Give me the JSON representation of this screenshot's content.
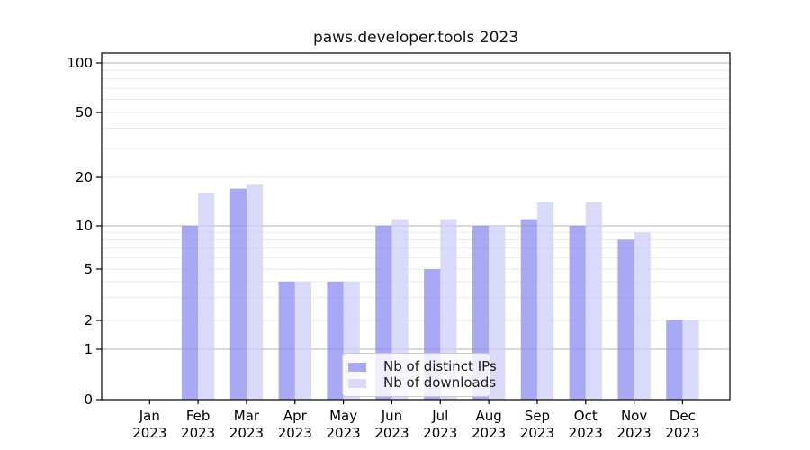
{
  "chart_data": {
    "type": "bar",
    "title": "paws.developer.tools 2023",
    "yscale": "log-like",
    "ylim": [
      0,
      115
    ],
    "grid": true,
    "legend_position": "bottom-center",
    "yticks": [
      {
        "value": 0,
        "label": "0",
        "major": false
      },
      {
        "value": 1,
        "label": "1",
        "major": true
      },
      {
        "value": 2,
        "label": "2",
        "major": false
      },
      {
        "value": 5,
        "label": "5",
        "major": false
      },
      {
        "value": 10,
        "label": "10",
        "major": true
      },
      {
        "value": 20,
        "label": "20",
        "major": false
      },
      {
        "value": 50,
        "label": "50",
        "major": false
      },
      {
        "value": 100,
        "label": "100",
        "major": true
      }
    ],
    "minor_grid_values": [
      3,
      4,
      6,
      7,
      8,
      9,
      30,
      40,
      60,
      70,
      80,
      90
    ],
    "x_ticks": [
      {
        "month": "Jan",
        "year": "2023"
      },
      {
        "month": "Feb",
        "year": "2023"
      },
      {
        "month": "Mar",
        "year": "2023"
      },
      {
        "month": "Apr",
        "year": "2023"
      },
      {
        "month": "May",
        "year": "2023"
      },
      {
        "month": "Jun",
        "year": "2023"
      },
      {
        "month": "Jul",
        "year": "2023"
      },
      {
        "month": "Aug",
        "year": "2023"
      },
      {
        "month": "Sep",
        "year": "2023"
      },
      {
        "month": "Oct",
        "year": "2023"
      },
      {
        "month": "Nov",
        "year": "2023"
      },
      {
        "month": "Dec",
        "year": "2023"
      }
    ],
    "series": [
      {
        "name": "Nb of distinct IPs",
        "color": "#a8a8f4",
        "values": [
          0,
          10,
          17,
          4,
          4,
          10,
          5,
          10,
          11,
          10,
          8,
          2
        ]
      },
      {
        "name": "Nb of downloads",
        "color": "#dadafb",
        "values": [
          0,
          16,
          18,
          4,
          4,
          11,
          11,
          10,
          14,
          14,
          9,
          2
        ]
      }
    ],
    "colors": {
      "major_gridline": "#b3b3b3",
      "minor_gridline": "#eaeaea",
      "axis": "#000000",
      "tick_label": "#000000"
    }
  }
}
